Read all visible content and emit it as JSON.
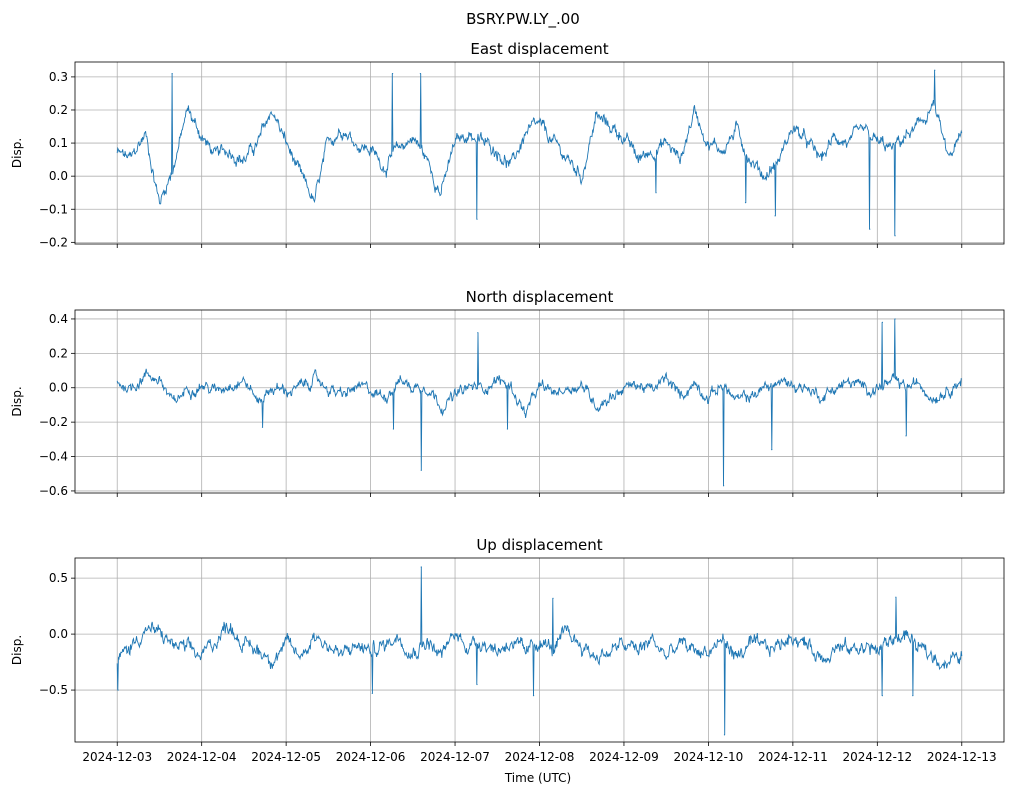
{
  "chart_data": {
    "type": "line",
    "title": "BSRY.PW.LY_.00",
    "xlabel": "Time (UTC)",
    "x_tick_labels": [
      "2024-12-03",
      "2024-12-04",
      "2024-12-05",
      "2024-12-06",
      "2024-12-07",
      "2024-12-08",
      "2024-12-09",
      "2024-12-10",
      "2024-12-11",
      "2024-12-12",
      "2024-12-13"
    ],
    "x_unit": "days since 2024-12-03",
    "xlim": [
      -0.5,
      10.5
    ],
    "sample_step_days": 0.1667,
    "line_color": "#1f77b4",
    "grid": true,
    "panels": [
      {
        "title": "East displacement",
        "ylabel": "Disp.",
        "ylim": [
          -0.205,
          0.345
        ],
        "y_ticks": [
          -0.2,
          -0.1,
          0.0,
          0.1,
          0.2,
          0.3
        ],
        "y_tick_labels": [
          "−0.2",
          "−0.1",
          "0.0",
          "0.1",
          "0.2",
          "0.3"
        ],
        "show_x_labels": false,
        "noise": 0.018,
        "values": [
          0.07,
          0.05,
          0.13,
          -0.08,
          0.03,
          0.2,
          0.12,
          0.06,
          0.08,
          0.05,
          0.1,
          0.2,
          0.1,
          0.0,
          -0.08,
          0.1,
          0.15,
          0.1,
          0.08,
          0.03,
          0.08,
          0.12,
          0.05,
          -0.05,
          0.1,
          0.13,
          0.1,
          0.08,
          0.03,
          0.13,
          0.15,
          0.1,
          0.05,
          0.0,
          0.18,
          0.15,
          0.12,
          0.05,
          0.08,
          0.1,
          0.05,
          0.2,
          0.1,
          0.08,
          0.14,
          0.05,
          0.0,
          0.05,
          0.15,
          0.1,
          0.05,
          0.12,
          0.1,
          0.13,
          0.1,
          0.08,
          0.12,
          0.15,
          0.22,
          0.05,
          0.12
        ],
        "spikes": [
          [
            0.65,
            0.31
          ],
          [
            3.26,
            0.31
          ],
          [
            3.59,
            0.31
          ],
          [
            4.26,
            -0.13
          ],
          [
            6.38,
            -0.05
          ],
          [
            7.44,
            -0.08
          ],
          [
            7.79,
            -0.12
          ],
          [
            8.91,
            -0.16
          ],
          [
            9.21,
            -0.18
          ],
          [
            9.68,
            0.32
          ]
        ]
      },
      {
        "title": "North displacement",
        "ylabel": "Disp.",
        "ylim": [
          -0.612,
          0.452
        ],
        "y_ticks": [
          -0.6,
          -0.4,
          -0.2,
          0.0,
          0.2,
          0.4
        ],
        "y_tick_labels": [
          "−0.6",
          "−0.4",
          "−0.2",
          "0.0",
          "0.2",
          "0.4"
        ],
        "show_x_labels": false,
        "noise": 0.03,
        "values": [
          0.03,
          0.0,
          0.08,
          0.05,
          -0.1,
          0.0,
          0.02,
          -0.02,
          0.03,
          0.05,
          -0.08,
          0.0,
          -0.02,
          0.0,
          0.05,
          0.0,
          -0.05,
          0.0,
          -0.02,
          -0.05,
          0.05,
          0.0,
          0.02,
          -0.1,
          -0.05,
          0.0,
          0.0,
          0.05,
          0.0,
          -0.15,
          0.0,
          -0.03,
          0.0,
          0.02,
          -0.1,
          -0.05,
          0.0,
          0.02,
          -0.02,
          0.05,
          -0.05,
          0.03,
          -0.05,
          0.02,
          -0.08,
          -0.05,
          0.0,
          0.03,
          0.02,
          0.0,
          -0.05,
          0.0,
          0.03,
          0.0,
          0.0,
          0.03,
          0.0,
          0.02,
          -0.05,
          0.0,
          0.05
        ],
        "spikes": [
          [
            1.72,
            -0.23
          ],
          [
            3.27,
            -0.24
          ],
          [
            3.6,
            -0.48
          ],
          [
            4.27,
            0.32
          ],
          [
            4.62,
            -0.24
          ],
          [
            7.18,
            -0.57
          ],
          [
            7.75,
            -0.36
          ],
          [
            9.06,
            0.38
          ],
          [
            9.21,
            0.4
          ],
          [
            9.34,
            -0.28
          ]
        ]
      },
      {
        "title": "Up displacement",
        "ylabel": "Disp.",
        "ylim": [
          -0.964,
          0.68
        ],
        "y_ticks": [
          -0.5,
          0.0,
          0.5
        ],
        "y_tick_labels": [
          "−0.5",
          "0.0",
          "0.5"
        ],
        "show_x_labels": true,
        "noise": 0.06,
        "values": [
          -0.25,
          -0.1,
          0.05,
          0.0,
          -0.1,
          -0.15,
          -0.2,
          -0.05,
          0.1,
          -0.1,
          -0.15,
          -0.2,
          -0.1,
          -0.2,
          0.0,
          -0.1,
          -0.2,
          -0.1,
          -0.15,
          -0.1,
          0.0,
          -0.15,
          -0.05,
          -0.2,
          0.0,
          -0.1,
          -0.05,
          -0.15,
          -0.05,
          -0.2,
          -0.05,
          -0.15,
          0.0,
          -0.1,
          -0.2,
          -0.15,
          -0.1,
          -0.15,
          -0.05,
          -0.2,
          -0.1,
          -0.15,
          -0.15,
          -0.05,
          -0.2,
          -0.1,
          -0.15,
          -0.1,
          0.0,
          -0.1,
          -0.2,
          -0.1,
          -0.15,
          -0.1,
          -0.15,
          -0.05,
          0.0,
          -0.15,
          -0.2,
          -0.25,
          -0.2
        ],
        "spikes": [
          [
            0.01,
            -0.5
          ],
          [
            3.02,
            -0.53
          ],
          [
            3.6,
            0.6
          ],
          [
            4.26,
            -0.45
          ],
          [
            4.93,
            -0.55
          ],
          [
            5.16,
            0.32
          ],
          [
            7.19,
            -0.9
          ],
          [
            9.06,
            -0.55
          ],
          [
            9.22,
            0.33
          ],
          [
            9.42,
            -0.55
          ]
        ]
      }
    ]
  }
}
